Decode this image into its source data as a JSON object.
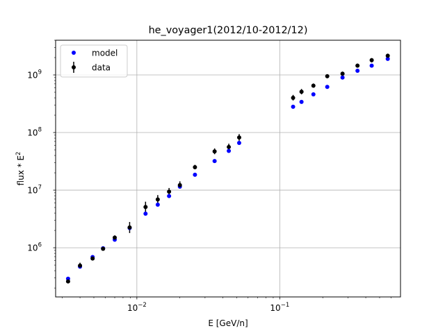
{
  "chart_data": {
    "type": "scatter",
    "title": "he_voyager1(2012/10-2012/12)",
    "xlabel": "E [GeV/n]",
    "ylabel": "flux * E",
    "ylabel_sup": "2",
    "xscale": "log",
    "yscale": "log",
    "xlim": [
      0.0027,
      0.7
    ],
    "ylim": [
      140000,
      4000000000
    ],
    "grid": "major",
    "legend_position": "top-left",
    "x_ticks": [
      {
        "base": "10",
        "exp": "−2",
        "value": 0.01
      },
      {
        "base": "10",
        "exp": "−1",
        "value": 0.1
      }
    ],
    "y_ticks": [
      {
        "base": "10",
        "exp": "6",
        "value": 1000000
      },
      {
        "base": "10",
        "exp": "7",
        "value": 10000000
      },
      {
        "base": "10",
        "exp": "8",
        "value": 100000000
      },
      {
        "base": "10",
        "exp": "9",
        "value": 1000000000
      }
    ],
    "series": [
      {
        "name": "model",
        "color": "#0000ff",
        "marker": "circle",
        "x": [
          0.0033,
          0.004,
          0.0049,
          0.0058,
          0.007,
          0.0089,
          0.0115,
          0.014,
          0.0168,
          0.02,
          0.0255,
          0.035,
          0.044,
          0.052,
          0.124,
          0.142,
          0.172,
          0.215,
          0.275,
          0.35,
          0.44,
          0.57
        ],
        "y": [
          290000,
          470000,
          690000,
          980000,
          1380000,
          2200000,
          3900000,
          5600000,
          7900000,
          11500000,
          18500000,
          32000000,
          48000000,
          66000000,
          280000000,
          340000000,
          460000000,
          620000000,
          900000000,
          1180000000,
          1450000000,
          1900000000
        ]
      },
      {
        "name": "data",
        "color": "#000000",
        "marker": "circle",
        "errorbars": true,
        "x": [
          0.0033,
          0.004,
          0.0049,
          0.0058,
          0.007,
          0.0089,
          0.0115,
          0.014,
          0.0168,
          0.02,
          0.0255,
          0.035,
          0.044,
          0.052,
          0.124,
          0.142,
          0.172,
          0.215,
          0.275,
          0.35,
          0.44,
          0.57
        ],
        "y": [
          260000,
          490000,
          650000,
          960000,
          1500000,
          2250000,
          5100000,
          6900000,
          9400000,
          12200000,
          25000000,
          47000000,
          56000000,
          82000000,
          400000000,
          510000000,
          650000000,
          950000000,
          1050000000,
          1450000000,
          1800000000,
          2150000000
        ],
        "y_low": [
          240000,
          440000,
          600000,
          900000,
          1380000,
          1800000,
          4200000,
          5900000,
          8100000,
          10600000,
          23000000,
          42000000,
          50000000,
          72000000,
          360000000,
          460000000,
          600000000,
          880000000,
          970000000,
          1340000000,
          1650000000,
          1980000000
        ],
        "y_high": [
          285000,
          550000,
          710000,
          1030000,
          1640000,
          2800000,
          6300000,
          8200000,
          10900000,
          14200000,
          27500000,
          53000000,
          64000000,
          94000000,
          450000000,
          570000000,
          710000000,
          1030000000,
          1140000000,
          1570000000,
          1960000000,
          2340000000
        ]
      }
    ]
  }
}
